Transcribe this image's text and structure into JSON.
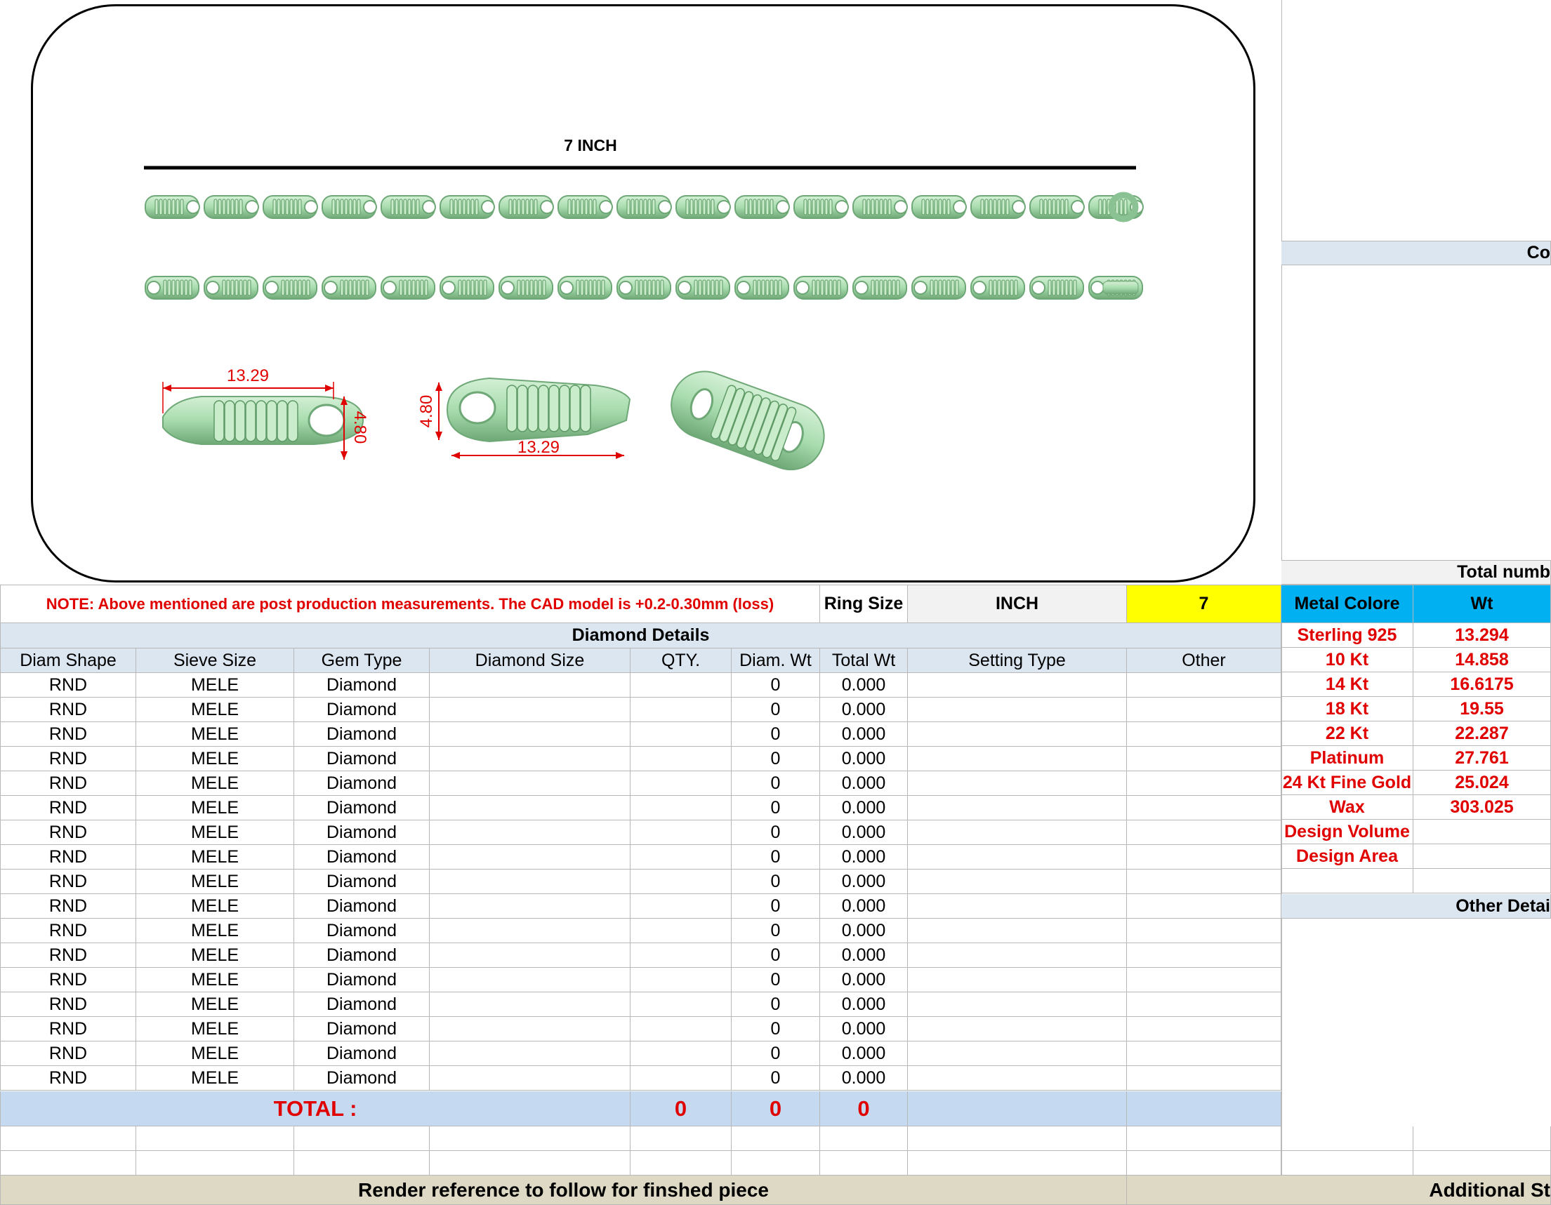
{
  "drawing": {
    "length_label": "7 INCH",
    "dim_length": "13.29",
    "dim_width": "4.80"
  },
  "note": "NOTE: Above mentioned are post production measurements. The CAD model is +0.2-0.30mm (loss)",
  "ring_size": {
    "label": "Ring Size",
    "unit": "INCH",
    "value": "7"
  },
  "diamond_details": {
    "title": "Diamond Details",
    "columns": [
      "Diam Shape",
      "Sieve Size",
      "Gem Type",
      "Diamond Size",
      "QTY.",
      "Diam. Wt",
      "Total Wt",
      "Setting Type",
      "Other"
    ],
    "rows": [
      {
        "shape": "RND",
        "sieve": "MELE",
        "gem": "Diamond",
        "wt": "0",
        "total": "0.000"
      },
      {
        "shape": "RND",
        "sieve": "MELE",
        "gem": "Diamond",
        "wt": "0",
        "total": "0.000"
      },
      {
        "shape": "RND",
        "sieve": "MELE",
        "gem": "Diamond",
        "wt": "0",
        "total": "0.000"
      },
      {
        "shape": "RND",
        "sieve": "MELE",
        "gem": "Diamond",
        "wt": "0",
        "total": "0.000"
      },
      {
        "shape": "RND",
        "sieve": "MELE",
        "gem": "Diamond",
        "wt": "0",
        "total": "0.000"
      },
      {
        "shape": "RND",
        "sieve": "MELE",
        "gem": "Diamond",
        "wt": "0",
        "total": "0.000"
      },
      {
        "shape": "RND",
        "sieve": "MELE",
        "gem": "Diamond",
        "wt": "0",
        "total": "0.000"
      },
      {
        "shape": "RND",
        "sieve": "MELE",
        "gem": "Diamond",
        "wt": "0",
        "total": "0.000"
      },
      {
        "shape": "RND",
        "sieve": "MELE",
        "gem": "Diamond",
        "wt": "0",
        "total": "0.000"
      },
      {
        "shape": "RND",
        "sieve": "MELE",
        "gem": "Diamond",
        "wt": "0",
        "total": "0.000"
      },
      {
        "shape": "RND",
        "sieve": "MELE",
        "gem": "Diamond",
        "wt": "0",
        "total": "0.000"
      },
      {
        "shape": "RND",
        "sieve": "MELE",
        "gem": "Diamond",
        "wt": "0",
        "total": "0.000"
      },
      {
        "shape": "RND",
        "sieve": "MELE",
        "gem": "Diamond",
        "wt": "0",
        "total": "0.000"
      },
      {
        "shape": "RND",
        "sieve": "MELE",
        "gem": "Diamond",
        "wt": "0",
        "total": "0.000"
      },
      {
        "shape": "RND",
        "sieve": "MELE",
        "gem": "Diamond",
        "wt": "0",
        "total": "0.000"
      },
      {
        "shape": "RND",
        "sieve": "MELE",
        "gem": "Diamond",
        "wt": "0",
        "total": "0.000"
      },
      {
        "shape": "RND",
        "sieve": "MELE",
        "gem": "Diamond",
        "wt": "0",
        "total": "0.000"
      }
    ],
    "total_label": "TOTAL :",
    "total_qty": "0",
    "total_diam_wt": "0",
    "total_wt": "0"
  },
  "metal": {
    "header_colore": "Metal Colore",
    "header_wt": "Wt",
    "rows": [
      {
        "name": "Sterling 925",
        "wt": "13.294"
      },
      {
        "name": "10 Kt",
        "wt": "14.858"
      },
      {
        "name": "14 Kt",
        "wt": "16.6175"
      },
      {
        "name": "18 Kt",
        "wt": "19.55"
      },
      {
        "name": "22 Kt",
        "wt": "22.287"
      },
      {
        "name": "Platinum",
        "wt": "27.761"
      },
      {
        "name": "24 Kt Fine Gold",
        "wt": "25.024"
      },
      {
        "name": "Wax",
        "wt": "303.025"
      },
      {
        "name": "Design Volume",
        "wt": ""
      },
      {
        "name": "Design Area",
        "wt": ""
      }
    ]
  },
  "right_panel": {
    "co_label": "Co",
    "total_num_label": "Total numb",
    "other_details": "Other Detai",
    "additional": "Additional St"
  },
  "footer": {
    "render_ref": "Render reference to follow for finshed piece"
  },
  "colors": {
    "chain_green": "#a8dcae",
    "note_red": "#e00000",
    "header_cyan": "#00b0f0",
    "ring_yellow": "#ffff00"
  }
}
